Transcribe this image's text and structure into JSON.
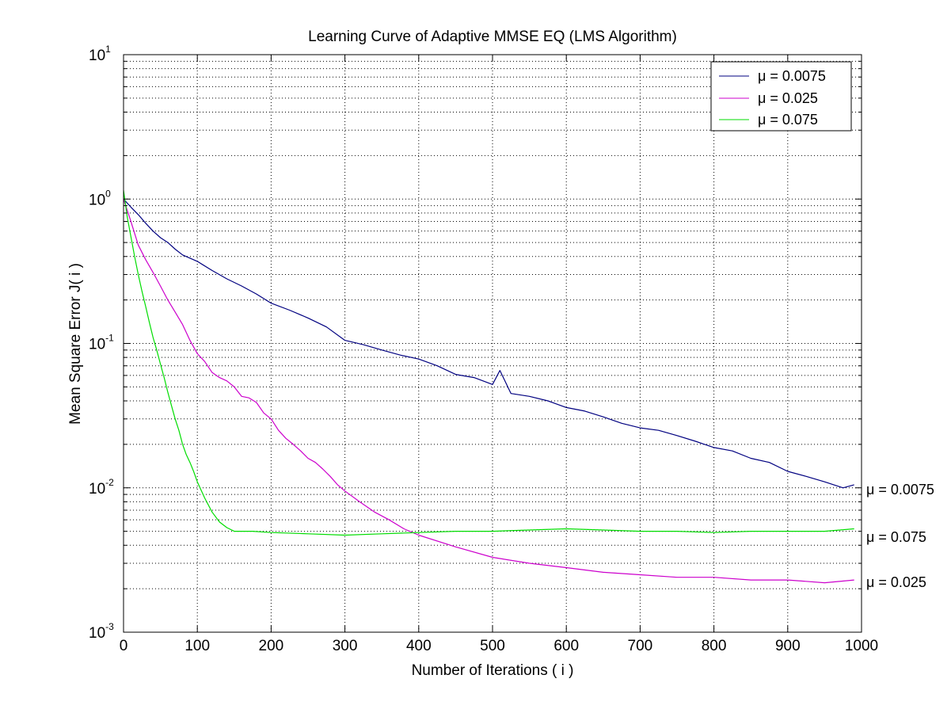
{
  "chart_data": {
    "type": "line",
    "title": "Learning Curve of Adaptive MMSE EQ (LMS Algorithm)",
    "xlabel": "Number of Iterations ( i )",
    "ylabel": "Mean Square Error  J( i )",
    "xlim": [
      0,
      1000
    ],
    "ylim": [
      0.001,
      10
    ],
    "yscale": "log",
    "grid": true,
    "grid_style": "dotted",
    "legend_position": "top-right",
    "x_ticks": [
      "0",
      "100",
      "200",
      "300",
      "400",
      "500",
      "600",
      "700",
      "800",
      "900",
      "1000"
    ],
    "y_ticks": [
      {
        "base": "10",
        "exp": "-3"
      },
      {
        "base": "10",
        "exp": "-2"
      },
      {
        "base": "10",
        "exp": "-1"
      },
      {
        "base": "10",
        "exp": "0"
      },
      {
        "base": "10",
        "exp": "1"
      }
    ],
    "series": [
      {
        "name": "μ = 0.0075",
        "color": "#000080",
        "x": [
          0,
          10,
          20,
          30,
          40,
          50,
          60,
          70,
          80,
          100,
          120,
          140,
          160,
          180,
          200,
          225,
          250,
          275,
          300,
          325,
          350,
          375,
          400,
          425,
          450,
          475,
          500,
          510,
          525,
          550,
          575,
          600,
          625,
          650,
          675,
          700,
          725,
          750,
          775,
          800,
          825,
          850,
          875,
          900,
          925,
          950,
          975,
          990
        ],
        "y": [
          1.0,
          0.88,
          0.78,
          0.68,
          0.6,
          0.54,
          0.5,
          0.45,
          0.41,
          0.37,
          0.32,
          0.28,
          0.25,
          0.22,
          0.19,
          0.17,
          0.15,
          0.13,
          0.105,
          0.098,
          0.09,
          0.083,
          0.078,
          0.07,
          0.061,
          0.058,
          0.052,
          0.065,
          0.045,
          0.043,
          0.04,
          0.036,
          0.034,
          0.031,
          0.028,
          0.026,
          0.025,
          0.023,
          0.021,
          0.019,
          0.018,
          0.016,
          0.015,
          0.013,
          0.012,
          0.011,
          0.01,
          0.0105
        ],
        "end_label": "μ = 0.0075"
      },
      {
        "name": "μ = 0.025",
        "color": "#cc00cc",
        "x": [
          0,
          10,
          20,
          30,
          40,
          50,
          60,
          70,
          80,
          90,
          100,
          110,
          120,
          130,
          140,
          150,
          160,
          170,
          180,
          190,
          200,
          210,
          220,
          230,
          240,
          250,
          260,
          270,
          280,
          290,
          300,
          320,
          340,
          360,
          380,
          400,
          450,
          500,
          550,
          600,
          650,
          700,
          750,
          800,
          850,
          900,
          950,
          990
        ],
        "y": [
          1.0,
          0.7,
          0.48,
          0.38,
          0.31,
          0.25,
          0.2,
          0.165,
          0.135,
          0.105,
          0.085,
          0.075,
          0.063,
          0.058,
          0.055,
          0.05,
          0.043,
          0.042,
          0.039,
          0.033,
          0.03,
          0.025,
          0.022,
          0.02,
          0.018,
          0.016,
          0.015,
          0.0135,
          0.012,
          0.0105,
          0.0095,
          0.008,
          0.0068,
          0.006,
          0.0052,
          0.0047,
          0.0039,
          0.0033,
          0.003,
          0.0028,
          0.0026,
          0.0025,
          0.0024,
          0.0024,
          0.0023,
          0.0023,
          0.0022,
          0.0023
        ],
        "end_label": "μ = 0.025"
      },
      {
        "name": "μ = 0.075",
        "color": "#00dd00",
        "x": [
          0,
          5,
          10,
          15,
          20,
          25,
          30,
          35,
          40,
          45,
          50,
          55,
          60,
          65,
          70,
          75,
          80,
          85,
          90,
          95,
          100,
          110,
          120,
          130,
          140,
          150,
          175,
          200,
          250,
          300,
          350,
          400,
          450,
          500,
          550,
          600,
          650,
          700,
          750,
          800,
          850,
          900,
          950,
          990
        ],
        "y": [
          1.15,
          0.75,
          0.55,
          0.4,
          0.3,
          0.23,
          0.18,
          0.14,
          0.11,
          0.09,
          0.072,
          0.058,
          0.046,
          0.037,
          0.03,
          0.025,
          0.02,
          0.017,
          0.015,
          0.013,
          0.011,
          0.0085,
          0.0068,
          0.0058,
          0.0053,
          0.005,
          0.005,
          0.0049,
          0.0048,
          0.0047,
          0.0048,
          0.0049,
          0.005,
          0.005,
          0.0051,
          0.0052,
          0.0051,
          0.005,
          0.005,
          0.0049,
          0.005,
          0.005,
          0.005,
          0.0052
        ],
        "end_label": "μ = 0.075"
      }
    ]
  }
}
